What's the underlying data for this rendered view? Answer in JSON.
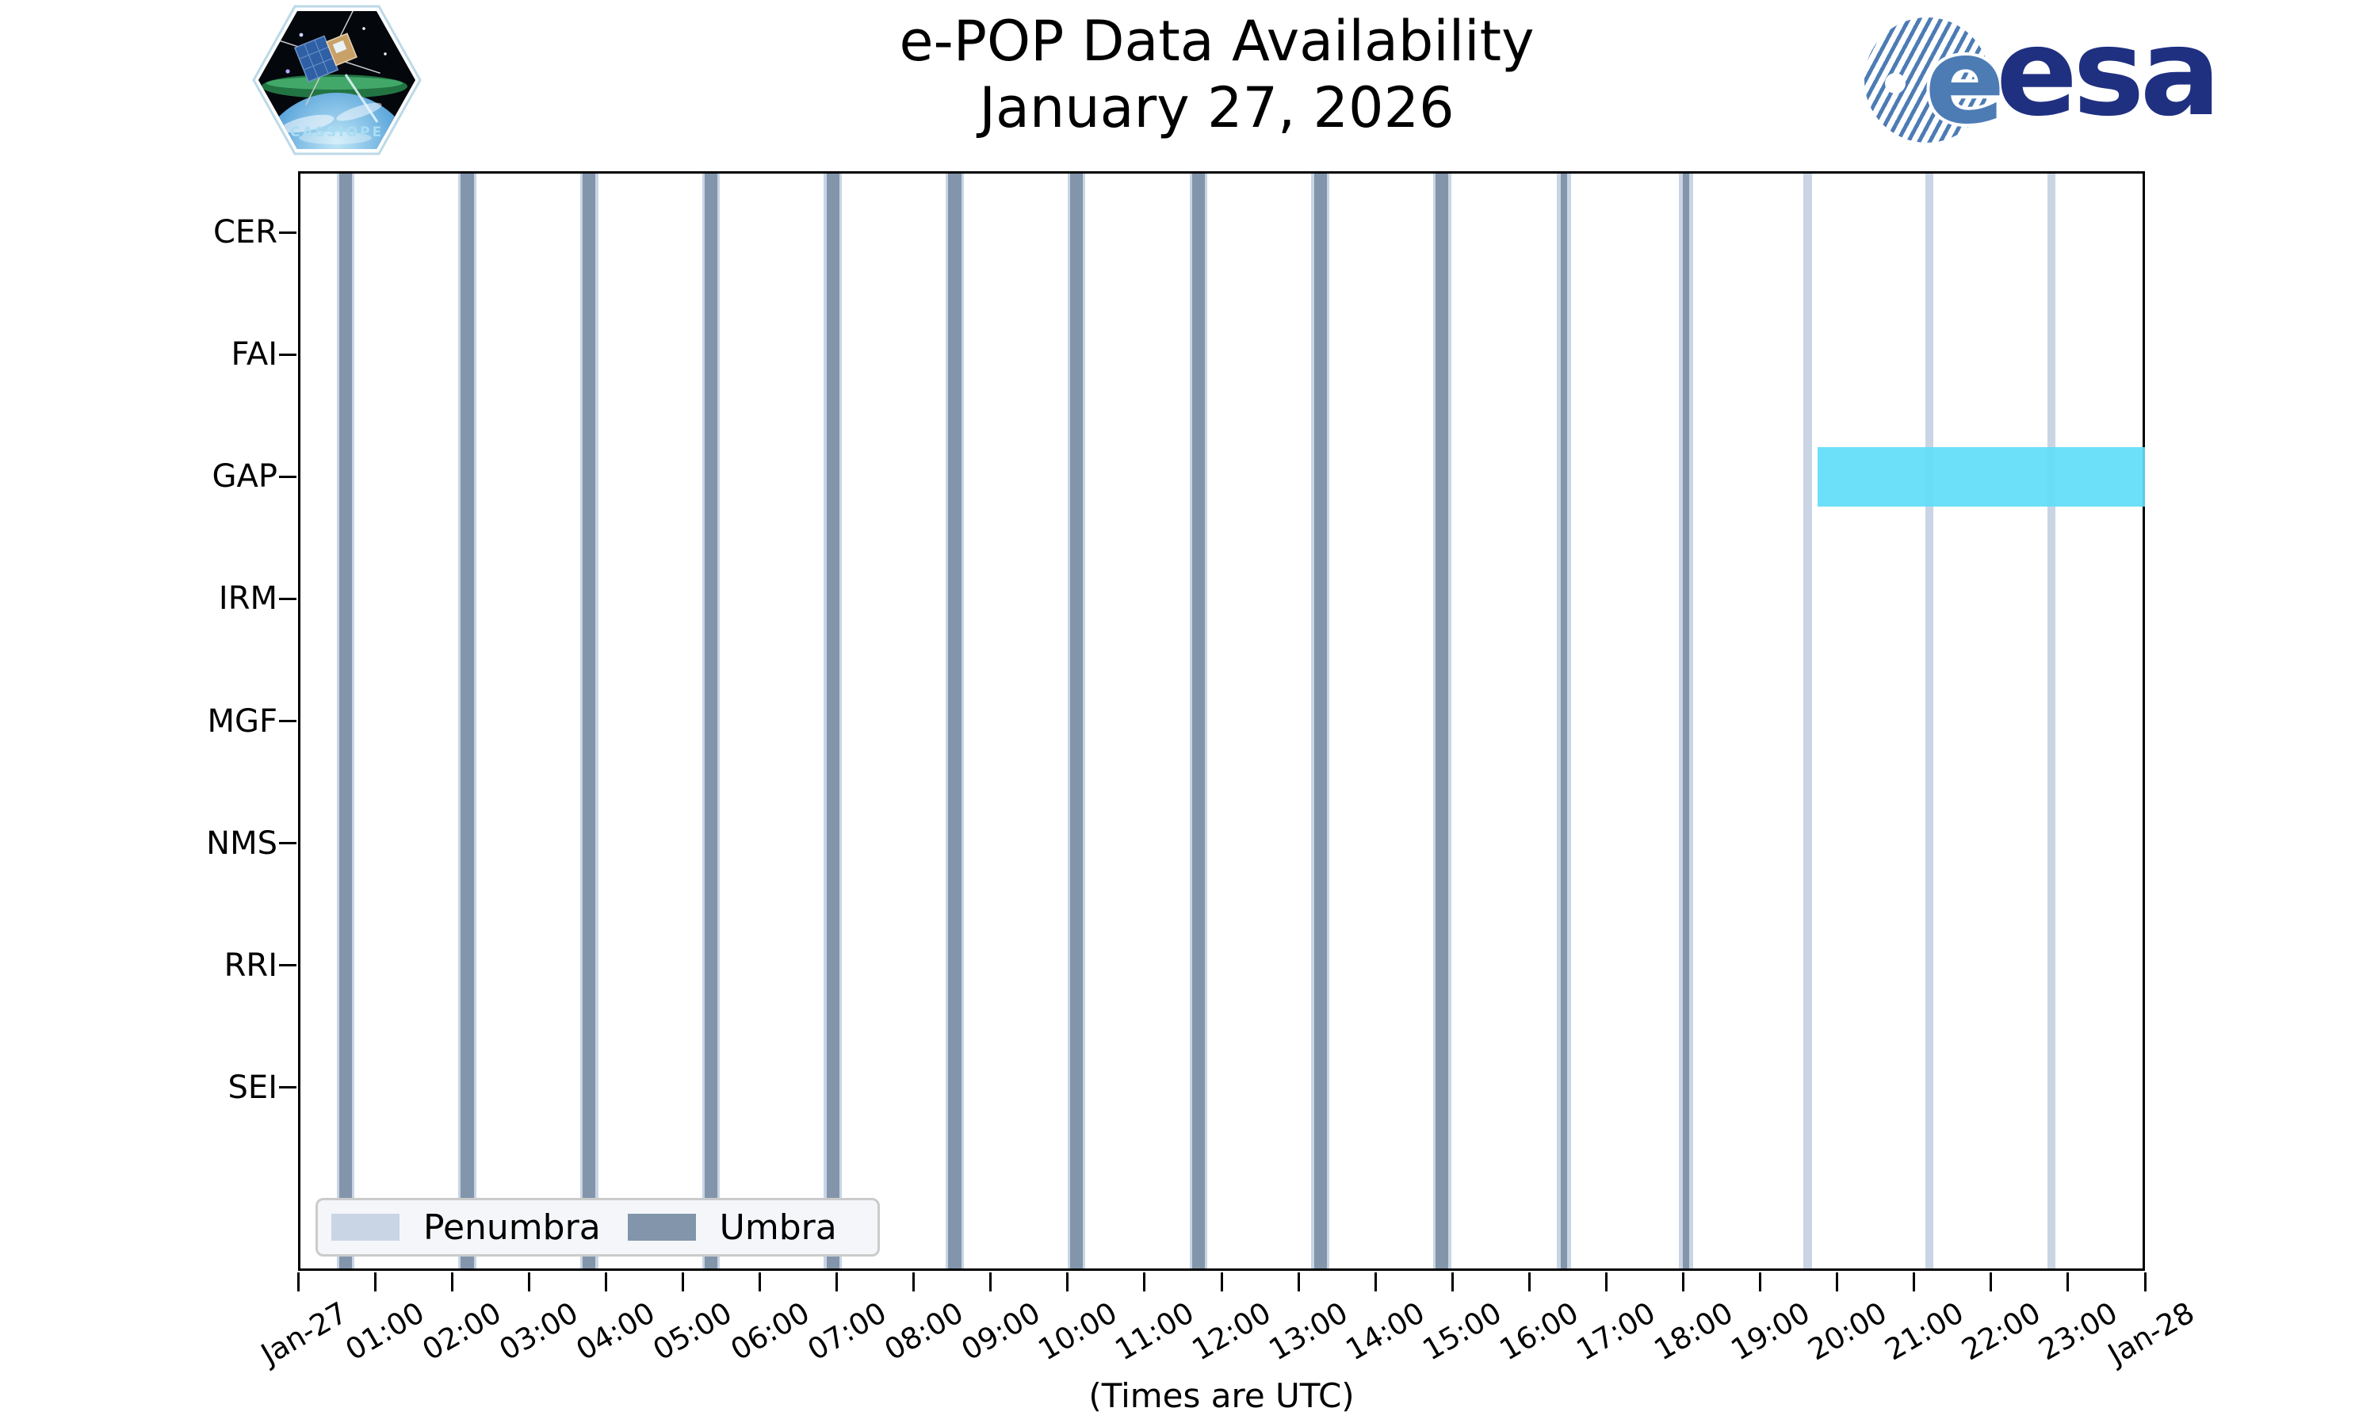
{
  "header": {
    "title": "e-POP Data Availability",
    "date": "January 27, 2026"
  },
  "logos": {
    "cassiope_label": "CASSIOPE",
    "esa_e": "e",
    "esa_wordmark": "esa"
  },
  "footer": {
    "caption": "(Times are UTC)"
  },
  "legend": {
    "items": [
      {
        "label": "Penumbra",
        "color": "#c9d5e4"
      },
      {
        "label": "Umbra",
        "color": "#8295ab"
      }
    ]
  },
  "colors": {
    "penumbra": "#c9d5e4",
    "umbra": "#8295ab",
    "gap_outage": "#60ddf7",
    "spine": "#000000",
    "esa_navy": "#203081",
    "esa_stripe": "#4d7cb5",
    "legend_bg": "#f4f6f9",
    "legend_border": "#cbcbcb"
  },
  "chart_data": {
    "type": "bar",
    "subtype": "availability-timeline",
    "title": "e-POP Data Availability",
    "subtitle": "January 27, 2026",
    "xlabel": "(Times are UTC)",
    "ylabel": "",
    "grid": false,
    "legend_position": "lower-left-inside",
    "instruments": [
      "CER",
      "FAI",
      "GAP",
      "IRM",
      "MGF",
      "NMS",
      "RRI",
      "SEI"
    ],
    "x_axis": {
      "start": "Jan-27 00:00 UTC",
      "end": "Jan-28 00:00 UTC",
      "range_minutes": 1440,
      "tick_labels": [
        "Jan-27",
        "01:00",
        "02:00",
        "03:00",
        "04:00",
        "05:00",
        "06:00",
        "07:00",
        "08:00",
        "09:00",
        "10:00",
        "11:00",
        "12:00",
        "13:00",
        "14:00",
        "15:00",
        "16:00",
        "17:00",
        "18:00",
        "19:00",
        "20:00",
        "21:00",
        "22:00",
        "23:00",
        "Jan-28"
      ]
    },
    "eclipse_events": [
      {
        "center_utc": "00:37",
        "umbra_minutes": 10,
        "penumbra_minutes_each_side": 2
      },
      {
        "center_utc": "02:12",
        "umbra_minutes": 10,
        "penumbra_minutes_each_side": 2
      },
      {
        "center_utc": "03:47",
        "umbra_minutes": 10,
        "penumbra_minutes_each_side": 2
      },
      {
        "center_utc": "05:22",
        "umbra_minutes": 10,
        "penumbra_minutes_each_side": 2
      },
      {
        "center_utc": "06:57",
        "umbra_minutes": 10,
        "penumbra_minutes_each_side": 2
      },
      {
        "center_utc": "08:32",
        "umbra_minutes": 10,
        "penumbra_minutes_each_side": 2
      },
      {
        "center_utc": "10:07",
        "umbra_minutes": 10,
        "penumbra_minutes_each_side": 2
      },
      {
        "center_utc": "11:42",
        "umbra_minutes": 10,
        "penumbra_minutes_each_side": 2
      },
      {
        "center_utc": "13:17",
        "umbra_minutes": 10,
        "penumbra_minutes_each_side": 2
      },
      {
        "center_utc": "14:52",
        "umbra_minutes": 10,
        "penumbra_minutes_each_side": 2
      },
      {
        "center_utc": "16:27",
        "umbra_minutes": 5,
        "penumbra_minutes_each_side": 3
      },
      {
        "center_utc": "18:02",
        "umbra_minutes": 5,
        "penumbra_minutes_each_side": 3
      },
      {
        "center_utc": "19:37",
        "umbra_minutes": 0,
        "penumbra_minutes_each_side": 3.2
      },
      {
        "center_utc": "21:12",
        "umbra_minutes": 0,
        "penumbra_minutes_each_side": 3.2
      },
      {
        "center_utc": "22:47",
        "umbra_minutes": 0,
        "penumbra_minutes_each_side": 3.2
      }
    ],
    "gap_bar": {
      "instrument": "GAP",
      "start_utc": "19:45",
      "end_utc": "24:00",
      "start_minutes": 1185,
      "end_minutes": 1440,
      "color": "#60ddf7"
    }
  }
}
